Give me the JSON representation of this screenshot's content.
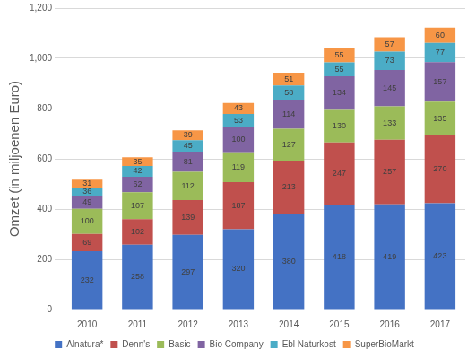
{
  "chart_data": {
    "type": "bar",
    "stacked": true,
    "data_labels": true,
    "grid": true,
    "legend": "bottom",
    "y_label": "Omzet (in miljoenen Euro)",
    "categories": [
      "2010",
      "2011",
      "2012",
      "2013",
      "2014",
      "2015",
      "2016",
      "2017"
    ],
    "ylim": [
      0,
      1200
    ],
    "yticks": [
      0,
      200,
      400,
      600,
      800,
      {
        "value": 1000,
        "label": "1,000"
      },
      {
        "value": 1200,
        "label": "1,200"
      }
    ],
    "series": [
      {
        "name": "Alnatura*",
        "color": "#4472c4",
        "values": [
          232,
          258,
          297,
          320,
          380,
          418,
          419,
          423
        ]
      },
      {
        "name": "Denn's",
        "color": "#c0504d",
        "values": [
          69,
          102,
          139,
          187,
          213,
          247,
          257,
          270
        ]
      },
      {
        "name": "Basic",
        "color": "#9bbb59",
        "values": [
          100,
          107,
          112,
          119,
          127,
          130,
          133,
          135
        ]
      },
      {
        "name": "Bio Company",
        "color": "#8064a2",
        "values": [
          49,
          62,
          81,
          100,
          114,
          134,
          145,
          157
        ]
      },
      {
        "name": "Ebl Naturkost",
        "color": "#4bacc6",
        "values": [
          36,
          42,
          45,
          53,
          58,
          55,
          73,
          77
        ]
      },
      {
        "name": "SuperBioMarkt",
        "color": "#f79646",
        "values": [
          31,
          35,
          39,
          43,
          51,
          55,
          57,
          60
        ]
      }
    ]
  }
}
